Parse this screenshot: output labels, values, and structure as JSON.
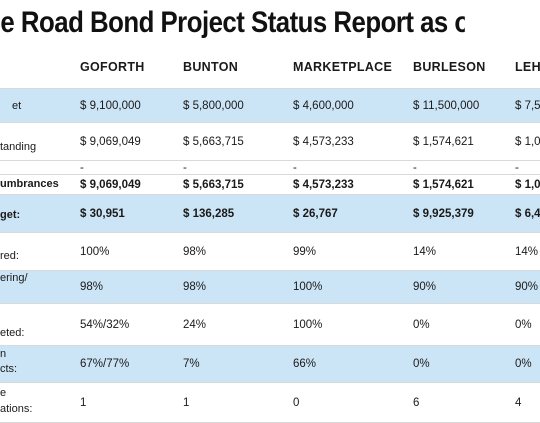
{
  "title": "e Road Bond Project Status Report as of Dec",
  "columns": [
    "GOFORTH",
    "BUNTON",
    "MARKETPLACE",
    "BURLESON",
    "LEH"
  ],
  "rows": [
    {
      "label": "et",
      "values": [
        "$ 9,100,000",
        "$ 5,800,000",
        "$ 4,600,000",
        "$ 11,500,000",
        "$ 7,5"
      ]
    },
    {
      "label": "tanding",
      "values": [
        "$ 9,069,049",
        "$ 5,663,715",
        "$ 4,573,233",
        "$ 1,574,621",
        "$ 1,0"
      ]
    },
    {
      "label": "",
      "values": [
        "-",
        "-",
        "-",
        "-",
        "-"
      ]
    },
    {
      "label": "umbrances",
      "values": [
        "$ 9,069,049",
        "$ 5,663,715",
        "$ 4,573,233",
        "$ 1,574,621",
        "$ 1,0"
      ]
    },
    {
      "label": "get:",
      "values": [
        "$ 30,951",
        "$ 136,285",
        "$ 26,767",
        "$ 9,925,379",
        "$ 6,4"
      ]
    },
    {
      "label": "red:",
      "values": [
        "100%",
        "98%",
        "99%",
        "14%",
        "14%"
      ]
    },
    {
      "label": "ering/",
      "values": [
        "98%",
        "98%",
        "100%",
        "90%",
        "90%"
      ]
    },
    {
      "label": "eted:",
      "values": [
        "54%/32%",
        "24%",
        "100%",
        "0%",
        "0%"
      ]
    },
    {
      "label": "n\ncts:",
      "values": [
        "67%/77%",
        "7%",
        "66%",
        "0%",
        "0%"
      ]
    },
    {
      "label": "e\nations:",
      "values": [
        "1",
        "1",
        "0",
        "6",
        "4"
      ]
    }
  ]
}
